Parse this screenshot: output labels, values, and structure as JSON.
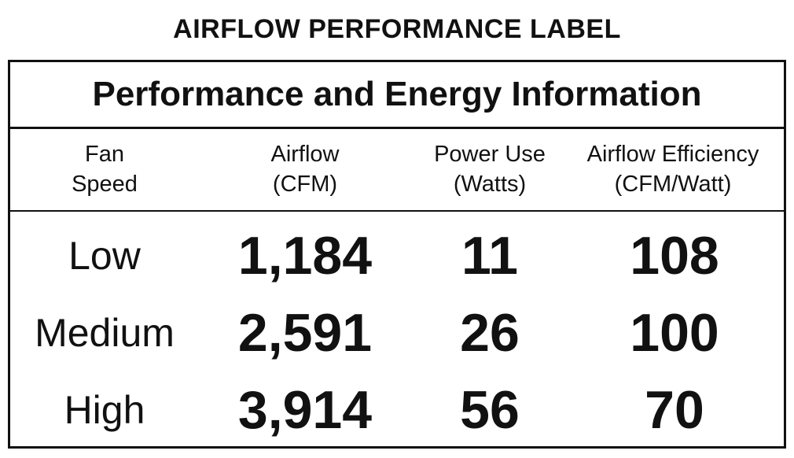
{
  "label": {
    "title": "AIRFLOW PERFORMANCE LABEL",
    "heading": "Performance and Energy Information"
  },
  "columns": [
    {
      "line1": "Fan",
      "line2": "Speed"
    },
    {
      "line1": "Airflow",
      "line2": "(CFM)"
    },
    {
      "line1": "Power Use",
      "line2": "(Watts)"
    },
    {
      "line1": "Airflow Efficiency",
      "line2": "(CFM/Watt)"
    }
  ],
  "rows": [
    {
      "speed": "Low",
      "airflow": "1,184",
      "power": "11",
      "efficiency": "108"
    },
    {
      "speed": "Medium",
      "airflow": "2,591",
      "power": "26",
      "efficiency": "100"
    },
    {
      "speed": "High",
      "airflow": "3,914",
      "power": "56",
      "efficiency": "70"
    }
  ]
}
